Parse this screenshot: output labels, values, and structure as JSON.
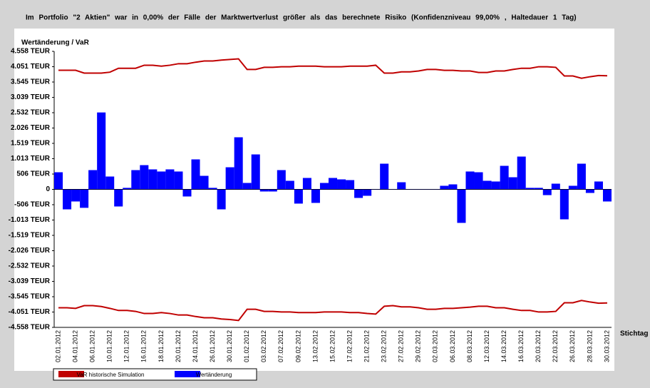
{
  "chart_data": {
    "type": "bar",
    "title": "Im Portfolio \"2 Aktien\" war in 0,00% der Fälle der Marktwertverlust größer als das berechnete Risiko (Konfidenzniveau 99,00% , Haltedauer 1 Tag)",
    "y_label": "Wertänderung / VaR",
    "x_label": "Stichtag",
    "categories": [
      "02.01.2012",
      null,
      "04.01.2012",
      null,
      "06.01.2012",
      null,
      "10.01.2012",
      null,
      "12.01.2012",
      null,
      "16.01.2012",
      null,
      "18.01.2012",
      null,
      "20.01.2012",
      null,
      "24.01.2012",
      null,
      "26.01.2012",
      null,
      "30.01.2012",
      null,
      "01.02.2012",
      null,
      "03.02.2012",
      null,
      "07.02.2012",
      null,
      "09.02.2012",
      null,
      "13.02.2012",
      null,
      "15.02.2012",
      null,
      "17.02.2012",
      null,
      "21.02.2012",
      null,
      "23.02.2012",
      null,
      "27.02.2012",
      null,
      "29.02.2012",
      null,
      "02.03.2012",
      null,
      "06.03.2012",
      null,
      "08.03.2012",
      null,
      "12.03.2012",
      null,
      "14.03.2012",
      null,
      "16.03.2012",
      null,
      "20.03.2012",
      null,
      "22.03.2012",
      null,
      "26.03.2012",
      null,
      "28.03.2012",
      null,
      "30.03.2012"
    ],
    "series": [
      {
        "name": "VaR historische Simulation",
        "color": "#c00000",
        "values": [
          3933,
          3933,
          3933,
          3840,
          3840,
          3840,
          3870,
          4000,
          4000,
          4000,
          4100,
          4100,
          4070,
          4100,
          4150,
          4150,
          4200,
          4240,
          4240,
          4270,
          4290,
          4310,
          3960,
          3960,
          4030,
          4030,
          4050,
          4050,
          4070,
          4070,
          4070,
          4050,
          4050,
          4050,
          4070,
          4070,
          4070,
          4100,
          3840,
          3840,
          3880,
          3880,
          3910,
          3960,
          3960,
          3930,
          3930,
          3910,
          3910,
          3860,
          3860,
          3910,
          3910,
          3960,
          4000,
          4000,
          4050,
          4050,
          4030,
          3745,
          3745,
          3670,
          3720,
          3760,
          3750
        ],
        "lower_values": [
          -3910,
          -3910,
          -3930,
          -3840,
          -3840,
          -3870,
          -3930,
          -4000,
          -4000,
          -4030,
          -4100,
          -4100,
          -4070,
          -4100,
          -4150,
          -4150,
          -4200,
          -4240,
          -4240,
          -4280,
          -4300,
          -4330,
          -3960,
          -3960,
          -4030,
          -4030,
          -4050,
          -4050,
          -4070,
          -4070,
          -4070,
          -4050,
          -4050,
          -4050,
          -4070,
          -4070,
          -4100,
          -4120,
          -3860,
          -3840,
          -3880,
          -3880,
          -3910,
          -3960,
          -3960,
          -3930,
          -3930,
          -3910,
          -3890,
          -3860,
          -3860,
          -3910,
          -3910,
          -3960,
          -4000,
          -4000,
          -4050,
          -4050,
          -4030,
          -3745,
          -3745,
          -3670,
          -3720,
          -3760,
          -3750
        ]
      },
      {
        "name": "Wertänderung",
        "color": "#0000ff",
        "values": [
          565,
          -660,
          -400,
          -610,
          636,
          2540,
          424,
          -565,
          50,
          636,
          800,
          660,
          590,
          660,
          590,
          -235,
          990,
          447,
          50,
          -660,
          730,
          1720,
          212,
          1154,
          -70,
          -70,
          636,
          283,
          -470,
          377,
          -447,
          212,
          377,
          330,
          306,
          -283,
          -212,
          0,
          848,
          0,
          235,
          0,
          0,
          0,
          0,
          118,
          165,
          -1107,
          590,
          565,
          283,
          260,
          777,
          400,
          1083,
          50,
          50,
          -190,
          188,
          -990,
          118,
          848,
          -118,
          260,
          -400
        ]
      }
    ],
    "ylim": [
      -4558,
      4558
    ],
    "yticks": [
      {
        "value": 4558,
        "label": "4.558 TEUR"
      },
      {
        "value": 4051,
        "label": "4.051 TEUR"
      },
      {
        "value": 3545,
        "label": "3.545 TEUR"
      },
      {
        "value": 3039,
        "label": "3.039 TEUR"
      },
      {
        "value": 2532,
        "label": "2.532 TEUR"
      },
      {
        "value": 2026,
        "label": "2.026 TEUR"
      },
      {
        "value": 1519,
        "label": "1.519 TEUR"
      },
      {
        "value": 1013,
        "label": "1.013 TEUR"
      },
      {
        "value": 506,
        "label": "506 TEUR"
      },
      0,
      {
        "value": -506,
        "label": "-506 TEUR"
      },
      {
        "value": -1013,
        "label": "-1.013 TEUR"
      },
      {
        "value": -1519,
        "label": "-1.519 TEUR"
      },
      {
        "value": -2026,
        "label": "-2.026 TEUR"
      },
      {
        "value": -2532,
        "label": "-2.532 TEUR"
      },
      {
        "value": -3039,
        "label": "-3.039 TEUR"
      },
      {
        "value": -3545,
        "label": "-3.545 TEUR"
      },
      {
        "value": -4051,
        "label": "-4.051 TEUR"
      },
      {
        "value": -4558,
        "label": "-4.558 TEUR"
      }
    ]
  }
}
